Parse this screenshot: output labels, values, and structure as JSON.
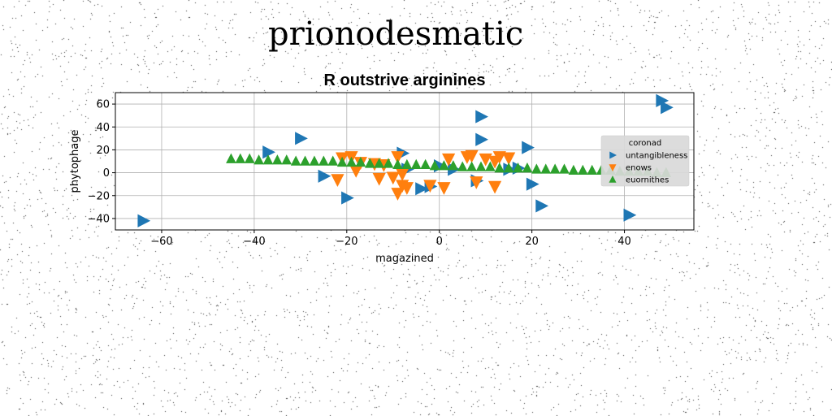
{
  "heading": "prionodesmatic",
  "chart_data": {
    "type": "scatter",
    "title": "R outstrive arginines",
    "xlabel": "magazined",
    "ylabel": "phytophage",
    "xlim": [
      -70,
      55
    ],
    "ylim": [
      -50,
      70
    ],
    "xticks": [
      -60,
      -40,
      -20,
      0,
      20,
      40
    ],
    "yticks": [
      -40,
      -20,
      0,
      20,
      40,
      60
    ],
    "grid": true,
    "legend": {
      "title": "coronad",
      "placement": "center-right"
    },
    "series": [
      {
        "name": "untangibleness",
        "marker": "triangle-right",
        "color": "#1f77b4",
        "points": [
          [
            -64,
            -42
          ],
          [
            -37,
            18
          ],
          [
            -30,
            30
          ],
          [
            -25,
            -3
          ],
          [
            -20,
            -22
          ],
          [
            -8,
            17
          ],
          [
            -7,
            3
          ],
          [
            -4,
            -14
          ],
          [
            -2,
            -12
          ],
          [
            0,
            6
          ],
          [
            3,
            3
          ],
          [
            8,
            -7
          ],
          [
            9,
            49
          ],
          [
            9,
            29
          ],
          [
            15,
            3
          ],
          [
            17,
            4
          ],
          [
            19,
            22
          ],
          [
            20,
            -10
          ],
          [
            22,
            -29
          ],
          [
            41,
            -37
          ],
          [
            48,
            63
          ],
          [
            49,
            57
          ]
        ]
      },
      {
        "name": "enows",
        "marker": "triangle-down",
        "color": "#ff7f0e",
        "points": [
          [
            -22,
            -6
          ],
          [
            -21,
            13
          ],
          [
            -19,
            14
          ],
          [
            -18,
            2
          ],
          [
            -17,
            9
          ],
          [
            -14,
            8
          ],
          [
            -13,
            -5
          ],
          [
            -12,
            7
          ],
          [
            -10,
            -4
          ],
          [
            -9,
            -18
          ],
          [
            -9,
            14
          ],
          [
            -8,
            -1
          ],
          [
            -8,
            -11
          ],
          [
            -7,
            -13
          ],
          [
            -2,
            -11
          ],
          [
            1,
            -13
          ],
          [
            2,
            12
          ],
          [
            6,
            14
          ],
          [
            7,
            15
          ],
          [
            8,
            -8
          ],
          [
            10,
            12
          ],
          [
            12,
            10
          ],
          [
            12,
            -12
          ],
          [
            13,
            14
          ],
          [
            15,
            13
          ]
        ]
      },
      {
        "name": "euornithes",
        "marker": "triangle-up",
        "color": "#2ca02c",
        "points": [
          [
            -45,
            12
          ],
          [
            -43,
            12
          ],
          [
            -41,
            12
          ],
          [
            -39,
            11
          ],
          [
            -37,
            11
          ],
          [
            -35,
            11
          ],
          [
            -33,
            11
          ],
          [
            -31,
            10
          ],
          [
            -29,
            10
          ],
          [
            -27,
            10
          ],
          [
            -25,
            10
          ],
          [
            -23,
            10
          ],
          [
            -21,
            9
          ],
          [
            -19,
            9
          ],
          [
            -17,
            9
          ],
          [
            -15,
            8
          ],
          [
            -13,
            8
          ],
          [
            -11,
            8
          ],
          [
            -9,
            7
          ],
          [
            -7,
            7
          ],
          [
            -5,
            7
          ],
          [
            -3,
            7
          ],
          [
            -1,
            6
          ],
          [
            1,
            6
          ],
          [
            3,
            6
          ],
          [
            5,
            5
          ],
          [
            7,
            5
          ],
          [
            9,
            5
          ],
          [
            11,
            5
          ],
          [
            13,
            4
          ],
          [
            15,
            4
          ],
          [
            17,
            4
          ],
          [
            19,
            4
          ],
          [
            21,
            3
          ],
          [
            23,
            3
          ],
          [
            25,
            3
          ],
          [
            27,
            3
          ],
          [
            29,
            2
          ],
          [
            31,
            2
          ],
          [
            33,
            2
          ],
          [
            35,
            2
          ],
          [
            37,
            2
          ],
          [
            39,
            1
          ],
          [
            41,
            1
          ],
          [
            43,
            1
          ],
          [
            45,
            1
          ],
          [
            47,
            0
          ],
          [
            49,
            0
          ]
        ]
      }
    ]
  }
}
